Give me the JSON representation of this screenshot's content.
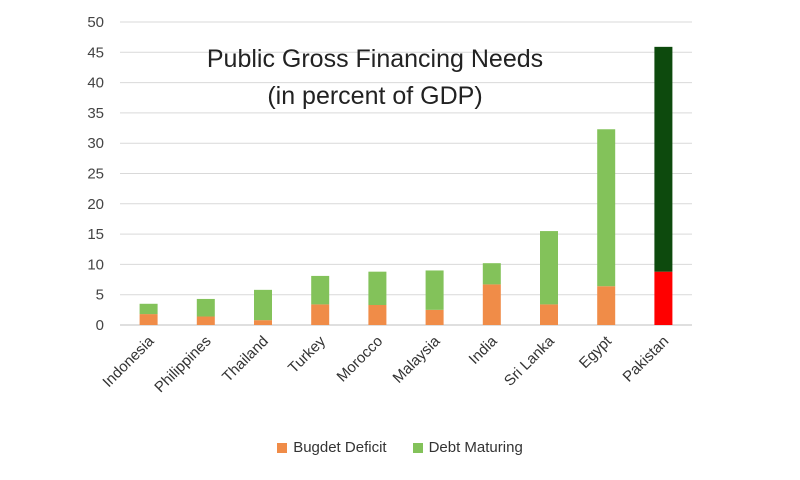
{
  "chart_data": {
    "type": "bar",
    "stacked": true,
    "title_line1": "Public Gross Financing Needs",
    "title_line2": "(in percent of GDP)",
    "categories": [
      "Indonesia",
      "Philippines",
      "Thailand",
      "Turkey",
      "Morocco",
      "Malaysia",
      "India",
      "Sri Lanka",
      "Egypt",
      "Pakistan"
    ],
    "series": [
      {
        "name": "Bugdet Deficit",
        "values": [
          1.8,
          1.4,
          0.8,
          3.4,
          3.3,
          2.5,
          6.7,
          3.4,
          6.4,
          8.8
        ]
      },
      {
        "name": "Debt Maturing",
        "values": [
          1.7,
          2.9,
          5.0,
          4.7,
          5.5,
          6.5,
          3.5,
          12.1,
          25.9,
          37.1
        ]
      }
    ],
    "colors": {
      "Bugdet Deficit": "#f08c48",
      "Debt Maturing": "#83c25a",
      "highlight_deficit": "#ff0000",
      "highlight_debt": "#0d4a0d"
    },
    "highlight_category": "Pakistan",
    "ylim": [
      0,
      50
    ],
    "yticks": [
      "0",
      "5",
      "10",
      "15",
      "20",
      "25",
      "30",
      "35",
      "40",
      "45",
      "50"
    ],
    "grid": true,
    "legend_position": "bottom"
  }
}
